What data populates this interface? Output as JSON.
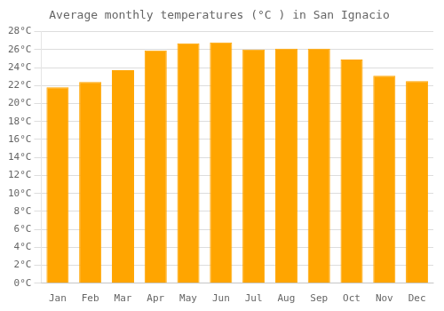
{
  "chart_data": {
    "type": "bar",
    "title": "Average monthly temperatures (°C ) in San Ignacio",
    "categories": [
      "Jan",
      "Feb",
      "Mar",
      "Apr",
      "May",
      "Jun",
      "Jul",
      "Aug",
      "Sep",
      "Oct",
      "Nov",
      "Dec"
    ],
    "values": [
      21.8,
      22.4,
      23.7,
      25.9,
      26.7,
      26.8,
      26.0,
      26.1,
      26.1,
      24.9,
      23.1,
      22.5
    ],
    "color": "#FFA500",
    "ylim": [
      0,
      28
    ],
    "yticks": [
      {
        "value": 0,
        "label": "0°C"
      },
      {
        "value": 2,
        "label": "2°C"
      },
      {
        "value": 4,
        "label": "4°C"
      },
      {
        "value": 6,
        "label": "6°C"
      },
      {
        "value": 8,
        "label": "8°C"
      },
      {
        "value": 10,
        "label": "10°C"
      },
      {
        "value": 12,
        "label": "12°C"
      },
      {
        "value": 14,
        "label": "14°C"
      },
      {
        "value": 16,
        "label": "16°C"
      },
      {
        "value": 18,
        "label": "18°C"
      },
      {
        "value": 20,
        "label": "20°C"
      },
      {
        "value": 22,
        "label": "22°C"
      },
      {
        "value": 24,
        "label": "24°C"
      },
      {
        "value": 26,
        "label": "26°C"
      },
      {
        "value": 28,
        "label": "28°C"
      }
    ],
    "grid": true
  }
}
